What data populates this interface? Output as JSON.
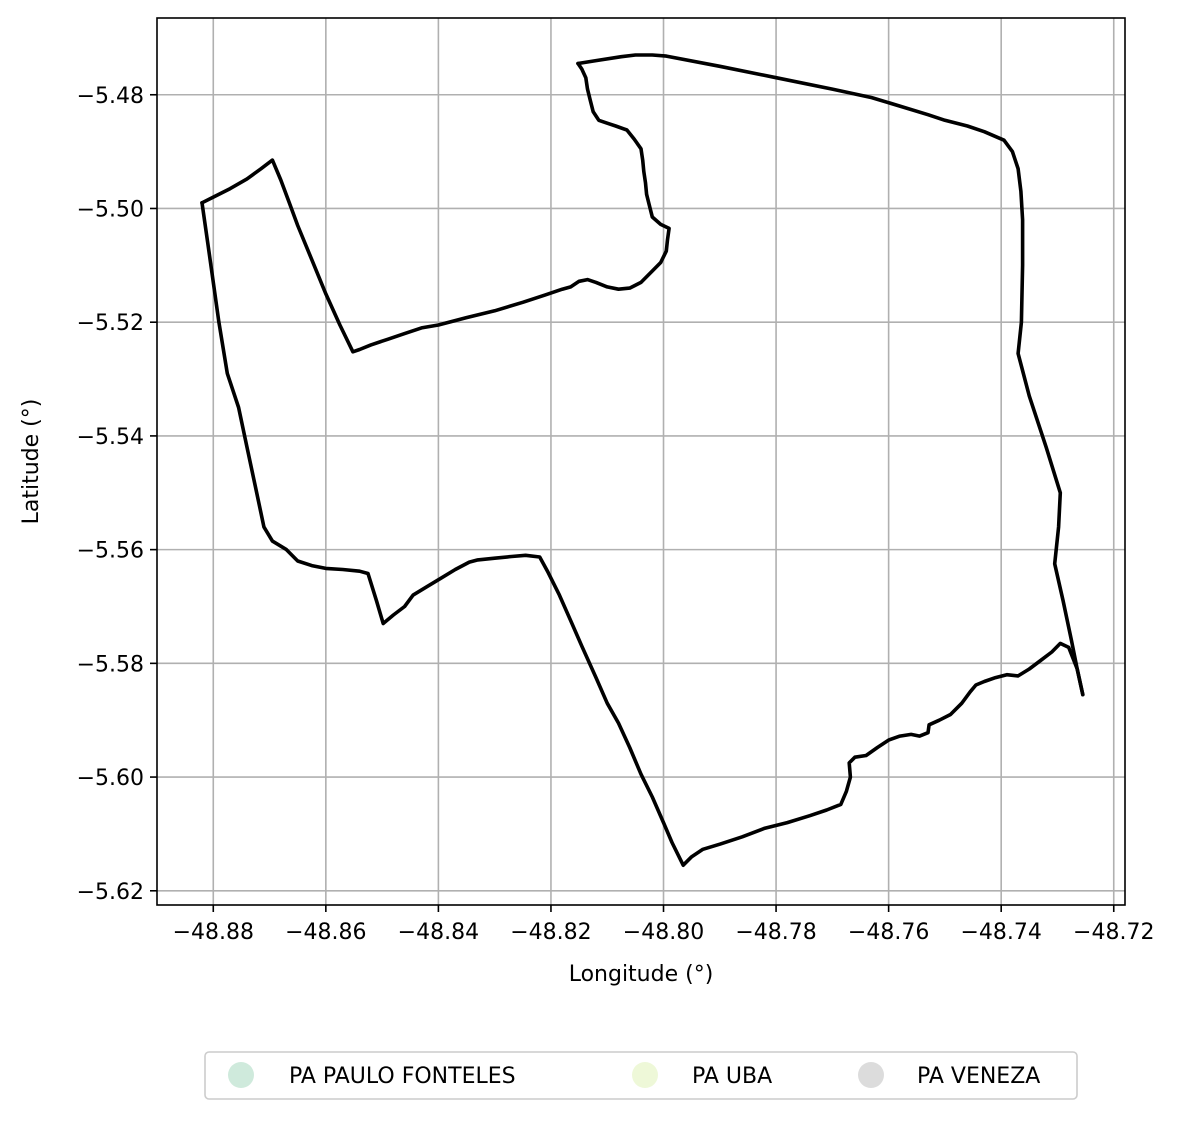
{
  "chart_data": {
    "type": "map",
    "title": "",
    "xlabel": "Longitude (°)",
    "ylabel": "Latitude (°)",
    "xlim": [
      -48.89,
      -48.718
    ],
    "ylim": [
      -5.6225,
      -5.4665
    ],
    "xticks": [
      -48.88,
      -48.86,
      -48.84,
      -48.82,
      -48.8,
      -48.78,
      -48.76,
      -48.74,
      -48.72
    ],
    "xtick_labels": [
      "−48.88",
      "−48.86",
      "−48.84",
      "−48.82",
      "−48.80",
      "−48.78",
      "−48.76",
      "−48.74",
      "−48.72"
    ],
    "yticks": [
      -5.48,
      -5.5,
      -5.52,
      -5.54,
      -5.56,
      -5.58,
      -5.6,
      -5.62
    ],
    "ytick_labels": [
      "−5.48",
      "−5.50",
      "−5.52",
      "−5.54",
      "−5.56",
      "−5.58",
      "−5.60",
      "−5.62"
    ],
    "grid": true,
    "legend_position": "bottom-center",
    "legend": [
      {
        "name": "PA PAULO FONTELES",
        "color": "#cfeadc"
      },
      {
        "name": "PA UBA",
        "color": "#eef8d8"
      },
      {
        "name": "PA VENEZA",
        "color": "#dcdcdc"
      }
    ],
    "boundary_color": "#000000",
    "boundaries": [
      {
        "name": "PA PAULO FONTELES",
        "points": [
          [
            -48.8152,
            -5.4745
          ],
          [
            -48.812,
            -5.474
          ],
          [
            -48.8075,
            -5.4733
          ],
          [
            -48.805,
            -5.473
          ],
          [
            -48.802,
            -5.473
          ],
          [
            -48.7995,
            -5.4732
          ],
          [
            -48.79,
            -5.475
          ],
          [
            -48.78,
            -5.477
          ],
          [
            -48.77,
            -5.479
          ],
          [
            -48.763,
            -5.4805
          ],
          [
            -48.758,
            -5.482
          ],
          [
            -48.753,
            -5.4835
          ],
          [
            -48.75,
            -5.4845
          ],
          [
            -48.746,
            -5.4855
          ],
          [
            -48.743,
            -5.4865
          ],
          [
            -48.7395,
            -5.488
          ],
          [
            -48.738,
            -5.49
          ],
          [
            -48.737,
            -5.493
          ],
          [
            -48.7365,
            -5.497
          ],
          [
            -48.7362,
            -5.502
          ],
          [
            -48.7362,
            -5.51
          ],
          [
            -48.7364,
            -5.52
          ],
          [
            -48.737,
            -5.5255
          ],
          [
            -48.735,
            -5.533
          ],
          [
            -48.732,
            -5.542
          ],
          [
            -48.7295,
            -5.55
          ],
          [
            -48.7298,
            -5.556
          ],
          [
            -48.7305,
            -5.5625
          ],
          [
            -48.729,
            -5.569
          ],
          [
            -48.7275,
            -5.576
          ],
          [
            -48.7265,
            -5.581
          ],
          [
            -48.7255,
            -5.5855
          ]
        ]
      },
      {
        "name": "PA UBA",
        "points": [
          [
            -48.882,
            -5.499
          ],
          [
            -48.88,
            -5.498
          ],
          [
            -48.877,
            -5.4965
          ],
          [
            -48.874,
            -5.4948
          ],
          [
            -48.8715,
            -5.493
          ],
          [
            -48.8695,
            -5.4915
          ],
          [
            -48.868,
            -5.495
          ],
          [
            -48.8665,
            -5.499
          ],
          [
            -48.865,
            -5.503
          ],
          [
            -48.8625,
            -5.509
          ],
          [
            -48.86,
            -5.515
          ],
          [
            -48.8575,
            -5.5205
          ],
          [
            -48.8552,
            -5.5252
          ],
          [
            -48.854,
            -5.5248
          ],
          [
            -48.852,
            -5.524
          ],
          [
            -48.849,
            -5.523
          ],
          [
            -48.846,
            -5.522
          ],
          [
            -48.843,
            -5.521
          ],
          [
            -48.84,
            -5.5205
          ],
          [
            -48.835,
            -5.5192
          ],
          [
            -48.83,
            -5.518
          ],
          [
            -48.825,
            -5.5165
          ],
          [
            -48.821,
            -5.5152
          ],
          [
            -48.818,
            -5.5142
          ],
          [
            -48.8165,
            -5.5138
          ],
          [
            -48.815,
            -5.5128
          ],
          [
            -48.8135,
            -5.5125
          ],
          [
            -48.812,
            -5.513
          ],
          [
            -48.81,
            -5.5138
          ],
          [
            -48.808,
            -5.5142
          ],
          [
            -48.806,
            -5.514
          ],
          [
            -48.804,
            -5.513
          ],
          [
            -48.802,
            -5.511
          ],
          [
            -48.8005,
            -5.5095
          ],
          [
            -48.7995,
            -5.5075
          ],
          [
            -48.7993,
            -5.5055
          ],
          [
            -48.799,
            -5.5035
          ],
          [
            -48.8005,
            -5.5028
          ],
          [
            -48.802,
            -5.5015
          ],
          [
            -48.8025,
            -5.4995
          ],
          [
            -48.803,
            -5.4975
          ],
          [
            -48.8032,
            -5.4955
          ],
          [
            -48.8035,
            -5.4935
          ],
          [
            -48.8037,
            -5.4915
          ],
          [
            -48.804,
            -5.4895
          ],
          [
            -48.8052,
            -5.4878
          ],
          [
            -48.8065,
            -5.4862
          ],
          [
            -48.8085,
            -5.4855
          ],
          [
            -48.81,
            -5.485
          ],
          [
            -48.8115,
            -5.4845
          ],
          [
            -48.8125,
            -5.483
          ],
          [
            -48.813,
            -5.481
          ],
          [
            -48.8135,
            -5.479
          ],
          [
            -48.8138,
            -5.477
          ],
          [
            -48.8145,
            -5.4755
          ],
          [
            -48.8152,
            -5.4745
          ]
        ]
      },
      {
        "name": "PA VENEZA",
        "points": [
          [
            -48.882,
            -5.499
          ],
          [
            -48.881,
            -5.506
          ],
          [
            -48.88,
            -5.513
          ],
          [
            -48.879,
            -5.52
          ],
          [
            -48.8775,
            -5.529
          ],
          [
            -48.8755,
            -5.535
          ],
          [
            -48.874,
            -5.542
          ],
          [
            -48.8725,
            -5.549
          ],
          [
            -48.871,
            -5.556
          ],
          [
            -48.8695,
            -5.5585
          ],
          [
            -48.867,
            -5.56
          ],
          [
            -48.865,
            -5.562
          ],
          [
            -48.8625,
            -5.5628
          ],
          [
            -48.86,
            -5.5633
          ],
          [
            -48.857,
            -5.5635
          ],
          [
            -48.854,
            -5.5638
          ],
          [
            -48.8525,
            -5.5642
          ],
          [
            -48.851,
            -5.569
          ],
          [
            -48.8498,
            -5.573
          ],
          [
            -48.848,
            -5.5715
          ],
          [
            -48.846,
            -5.57
          ],
          [
            -48.8445,
            -5.568
          ],
          [
            -48.842,
            -5.5665
          ],
          [
            -48.8395,
            -5.565
          ],
          [
            -48.837,
            -5.5635
          ],
          [
            -48.8345,
            -5.5622
          ],
          [
            -48.833,
            -5.5618
          ],
          [
            -48.83,
            -5.5615
          ],
          [
            -48.827,
            -5.5612
          ],
          [
            -48.8245,
            -5.561
          ],
          [
            -48.822,
            -5.5613
          ],
          [
            -48.8205,
            -5.564
          ],
          [
            -48.8185,
            -5.568
          ],
          [
            -48.8165,
            -5.5725
          ],
          [
            -48.8145,
            -5.577
          ],
          [
            -48.812,
            -5.5825
          ],
          [
            -48.81,
            -5.587
          ],
          [
            -48.808,
            -5.5905
          ],
          [
            -48.806,
            -5.5948
          ],
          [
            -48.804,
            -5.5995
          ],
          [
            -48.802,
            -5.6035
          ],
          [
            -48.8,
            -5.608
          ],
          [
            -48.7985,
            -5.6115
          ],
          [
            -48.7965,
            -5.6155
          ],
          [
            -48.795,
            -5.614
          ],
          [
            -48.793,
            -5.6127
          ],
          [
            -48.79,
            -5.6118
          ],
          [
            -48.786,
            -5.6105
          ],
          [
            -48.782,
            -5.609
          ],
          [
            -48.778,
            -5.608
          ],
          [
            -48.774,
            -5.6068
          ],
          [
            -48.771,
            -5.6058
          ],
          [
            -48.7685,
            -5.6048
          ],
          [
            -48.7675,
            -5.6025
          ],
          [
            -48.7668,
            -5.6
          ],
          [
            -48.767,
            -5.5975
          ],
          [
            -48.766,
            -5.5965
          ],
          [
            -48.764,
            -5.5962
          ],
          [
            -48.762,
            -5.5948
          ],
          [
            -48.76,
            -5.5935
          ],
          [
            -48.758,
            -5.5928
          ],
          [
            -48.756,
            -5.5925
          ],
          [
            -48.7545,
            -5.5928
          ],
          [
            -48.753,
            -5.5922
          ],
          [
            -48.7528,
            -5.5908
          ],
          [
            -48.751,
            -5.59
          ],
          [
            -48.749,
            -5.589
          ],
          [
            -48.747,
            -5.587
          ],
          [
            -48.7455,
            -5.585
          ],
          [
            -48.7445,
            -5.5838
          ],
          [
            -48.743,
            -5.5832
          ],
          [
            -48.741,
            -5.5825
          ],
          [
            -48.739,
            -5.582
          ],
          [
            -48.737,
            -5.5822
          ],
          [
            -48.735,
            -5.581
          ],
          [
            -48.733,
            -5.5795
          ],
          [
            -48.731,
            -5.578
          ],
          [
            -48.7295,
            -5.5765
          ],
          [
            -48.728,
            -5.5772
          ],
          [
            -48.7265,
            -5.581
          ],
          [
            -48.7255,
            -5.5855
          ]
        ]
      }
    ]
  }
}
